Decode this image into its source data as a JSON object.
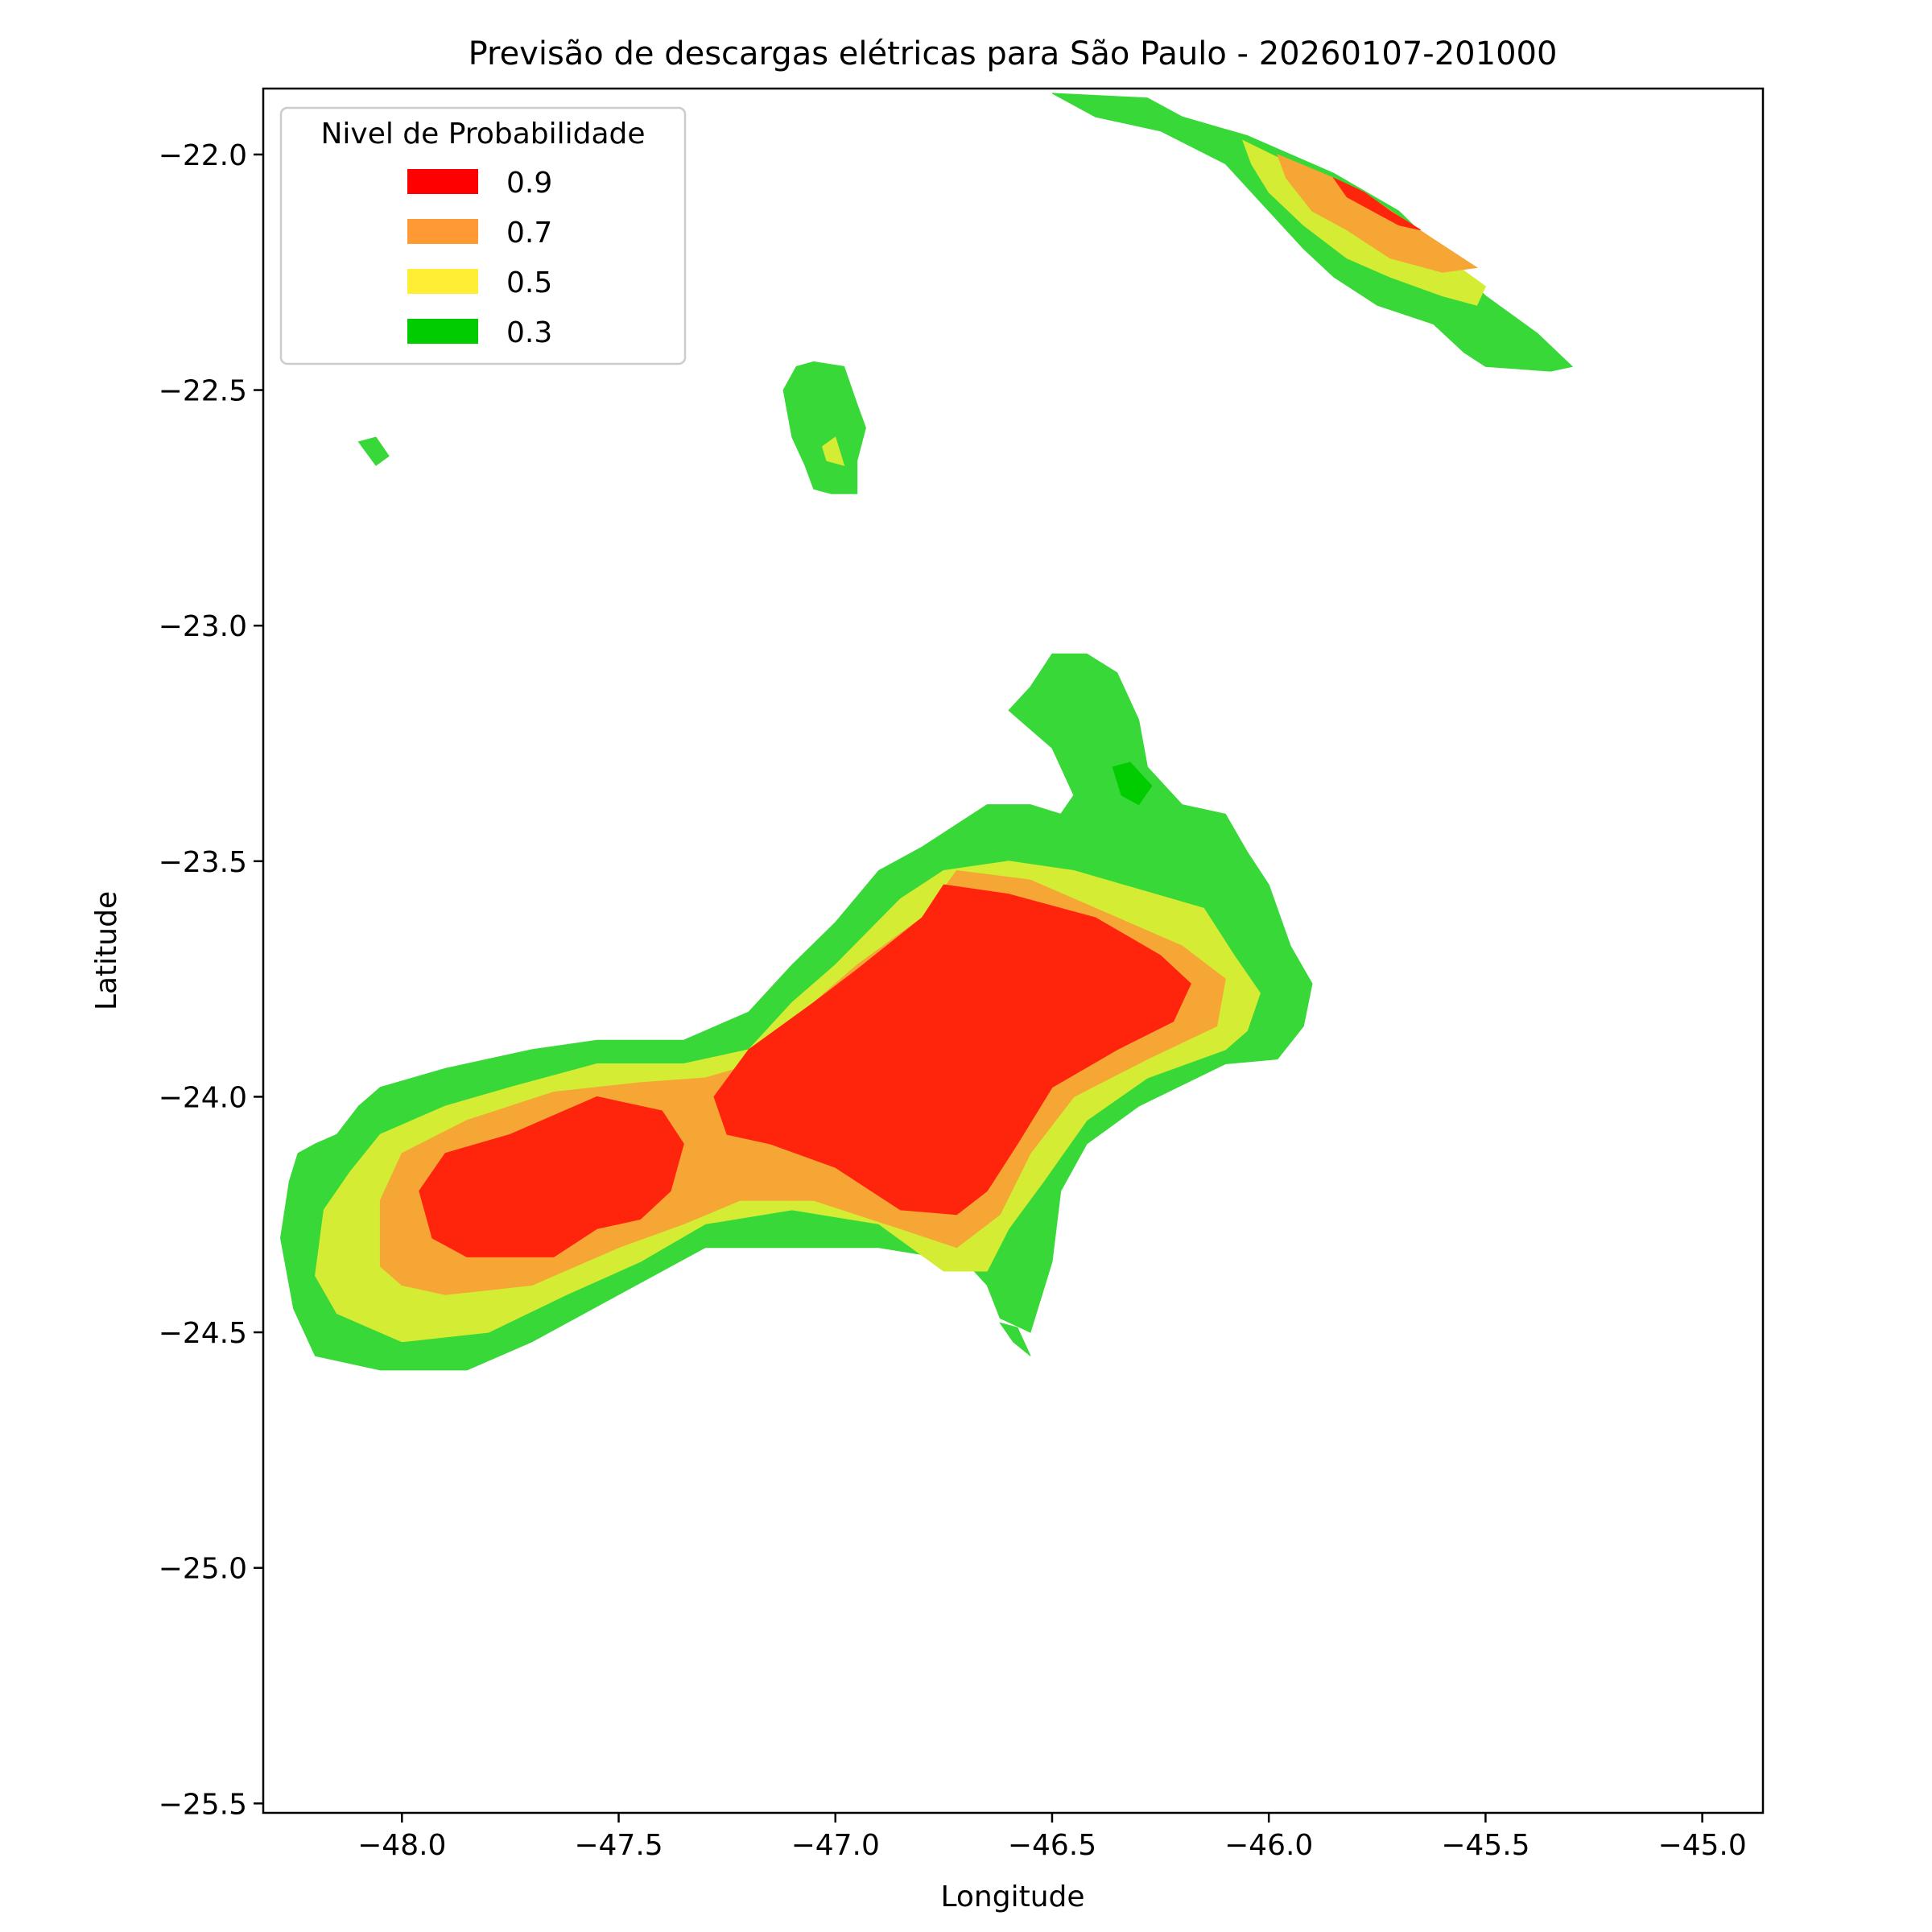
{
  "chart_data": {
    "type": "contourf",
    "title": "Previsão de descargas elétricas para São Paulo - 20260107-201000",
    "xlabel": "Longitude",
    "ylabel": "Latitude",
    "xlim": [
      -48.32,
      -44.86
    ],
    "ylim": [
      -25.52,
      -21.86
    ],
    "xticks": [
      -48.0,
      -47.5,
      -47.0,
      -46.5,
      -46.0,
      -45.5,
      -45.0
    ],
    "xtick_labels": [
      "−48.0",
      "−47.5",
      "−47.0",
      "−46.5",
      "−46.0",
      "−45.5",
      "−45.0"
    ],
    "yticks": [
      -22.0,
      -22.5,
      -23.0,
      -23.5,
      -24.0,
      -24.5,
      -25.0,
      -25.5
    ],
    "ytick_labels": [
      "−22.0",
      "−22.5",
      "−23.0",
      "−23.5",
      "−24.0",
      "−24.5",
      "−25.0",
      "−25.5"
    ],
    "grid": false,
    "legend": {
      "title": "Nivel de Probabilidade",
      "placement": "top-left",
      "entries": [
        {
          "label": "0.9",
          "color": "#ff0000"
        },
        {
          "label": "0.7",
          "color": "#ff9933"
        },
        {
          "label": "0.5",
          "color": "#ffee33"
        },
        {
          "label": "0.3",
          "color": "#00cc00"
        }
      ]
    },
    "levels": [
      {
        "level": 0.3,
        "color": "#38d838",
        "regions": [
          [
            [
              -48.26,
              -24.18
            ],
            [
              -48.24,
              -24.12
            ],
            [
              -48.2,
              -24.1
            ],
            [
              -48.15,
              -24.08
            ],
            [
              -48.1,
              -24.02
            ],
            [
              -48.05,
              -23.98
            ],
            [
              -47.9,
              -23.94
            ],
            [
              -47.7,
              -23.9
            ],
            [
              -47.55,
              -23.88
            ],
            [
              -47.35,
              -23.88
            ],
            [
              -47.2,
              -23.82
            ],
            [
              -47.1,
              -23.72
            ],
            [
              -47.0,
              -23.63
            ],
            [
              -46.9,
              -23.52
            ],
            [
              -46.8,
              -23.47
            ],
            [
              -46.65,
              -23.38
            ],
            [
              -46.55,
              -23.38
            ],
            [
              -46.48,
              -23.4
            ],
            [
              -46.45,
              -23.36
            ],
            [
              -46.5,
              -23.26
            ],
            [
              -46.6,
              -23.18
            ],
            [
              -46.55,
              -23.13
            ],
            [
              -46.5,
              -23.06
            ],
            [
              -46.42,
              -23.06
            ],
            [
              -46.35,
              -23.1
            ],
            [
              -46.3,
              -23.2
            ],
            [
              -46.28,
              -23.3
            ],
            [
              -46.2,
              -23.38
            ],
            [
              -46.1,
              -23.4
            ],
            [
              -46.05,
              -23.48
            ],
            [
              -46.0,
              -23.55
            ],
            [
              -45.95,
              -23.68
            ],
            [
              -45.9,
              -23.76
            ],
            [
              -45.92,
              -23.85
            ],
            [
              -45.98,
              -23.92
            ],
            [
              -46.1,
              -23.93
            ],
            [
              -46.3,
              -24.02
            ],
            [
              -46.42,
              -24.1
            ],
            [
              -46.48,
              -24.2
            ],
            [
              -46.5,
              -24.35
            ],
            [
              -46.55,
              -24.5
            ],
            [
              -46.62,
              -24.47
            ],
            [
              -46.65,
              -24.4
            ],
            [
              -46.7,
              -24.35
            ],
            [
              -46.9,
              -24.32
            ],
            [
              -47.1,
              -24.32
            ],
            [
              -47.3,
              -24.32
            ],
            [
              -47.5,
              -24.42
            ],
            [
              -47.7,
              -24.52
            ],
            [
              -47.85,
              -24.58
            ],
            [
              -48.05,
              -24.58
            ],
            [
              -48.2,
              -24.55
            ],
            [
              -48.25,
              -24.45
            ],
            [
              -48.28,
              -24.3
            ]
          ],
          [
            [
              -47.09,
              -22.45
            ],
            [
              -47.05,
              -22.44
            ],
            [
              -46.98,
              -22.45
            ],
            [
              -46.95,
              -22.53
            ],
            [
              -46.93,
              -22.58
            ],
            [
              -46.95,
              -22.65
            ],
            [
              -46.95,
              -22.72
            ],
            [
              -47.01,
              -22.72
            ],
            [
              -47.05,
              -22.71
            ],
            [
              -47.07,
              -22.66
            ],
            [
              -47.1,
              -22.6
            ],
            [
              -47.12,
              -22.5
            ]
          ],
          [
            [
              -46.5,
              -21.87
            ],
            [
              -46.28,
              -21.88
            ],
            [
              -46.2,
              -21.92
            ],
            [
              -46.05,
              -21.96
            ],
            [
              -45.85,
              -22.04
            ],
            [
              -45.7,
              -22.12
            ],
            [
              -45.5,
              -22.3
            ],
            [
              -45.38,
              -22.38
            ],
            [
              -45.3,
              -22.45
            ],
            [
              -45.35,
              -22.46
            ],
            [
              -45.5,
              -22.45
            ],
            [
              -45.55,
              -22.42
            ],
            [
              -45.62,
              -22.36
            ],
            [
              -45.75,
              -22.32
            ],
            [
              -45.85,
              -22.26
            ],
            [
              -45.92,
              -22.2
            ],
            [
              -46.0,
              -22.12
            ],
            [
              -46.1,
              -22.02
            ],
            [
              -46.25,
              -21.95
            ],
            [
              -46.4,
              -21.92
            ]
          ],
          [
            [
              -48.1,
              -22.61
            ],
            [
              -48.06,
              -22.6
            ],
            [
              -48.03,
              -22.64
            ],
            [
              -48.06,
              -22.66
            ]
          ],
          [
            [
              -46.62,
              -24.48
            ],
            [
              -46.58,
              -24.49
            ],
            [
              -46.55,
              -24.55
            ],
            [
              -46.59,
              -24.52
            ]
          ]
        ]
      },
      {
        "level": 0.5,
        "color": "#d4ed34",
        "regions": [
          [
            [
              -48.2,
              -24.38
            ],
            [
              -48.18,
              -24.24
            ],
            [
              -48.12,
              -24.16
            ],
            [
              -48.05,
              -24.08
            ],
            [
              -47.9,
              -24.02
            ],
            [
              -47.75,
              -23.98
            ],
            [
              -47.55,
              -23.93
            ],
            [
              -47.35,
              -23.93
            ],
            [
              -47.2,
              -23.9
            ],
            [
              -47.1,
              -23.8
            ],
            [
              -47.0,
              -23.72
            ],
            [
              -46.85,
              -23.58
            ],
            [
              -46.75,
              -23.52
            ],
            [
              -46.6,
              -23.5
            ],
            [
              -46.45,
              -23.52
            ],
            [
              -46.3,
              -23.56
            ],
            [
              -46.15,
              -23.6
            ],
            [
              -46.08,
              -23.7
            ],
            [
              -46.02,
              -23.78
            ],
            [
              -46.05,
              -23.86
            ],
            [
              -46.1,
              -23.9
            ],
            [
              -46.28,
              -23.96
            ],
            [
              -46.42,
              -24.05
            ],
            [
              -46.52,
              -24.18
            ],
            [
              -46.6,
              -24.28
            ],
            [
              -46.65,
              -24.37
            ],
            [
              -46.75,
              -24.37
            ],
            [
              -46.9,
              -24.27
            ],
            [
              -47.1,
              -24.24
            ],
            [
              -47.3,
              -24.27
            ],
            [
              -47.45,
              -24.35
            ],
            [
              -47.62,
              -24.42
            ],
            [
              -47.8,
              -24.5
            ],
            [
              -48.0,
              -24.52
            ],
            [
              -48.15,
              -24.46
            ]
          ],
          [
            [
              -47.03,
              -22.62
            ],
            [
              -47.0,
              -22.6
            ],
            [
              -46.98,
              -22.66
            ],
            [
              -47.02,
              -22.65
            ]
          ],
          [
            [
              -46.06,
              -21.97
            ],
            [
              -45.95,
              -22.02
            ],
            [
              -45.82,
              -22.1
            ],
            [
              -45.65,
              -22.18
            ],
            [
              -45.5,
              -22.28
            ],
            [
              -45.52,
              -22.32
            ],
            [
              -45.6,
              -22.3
            ],
            [
              -45.72,
              -22.26
            ],
            [
              -45.82,
              -22.22
            ],
            [
              -45.92,
              -22.15
            ],
            [
              -46.0,
              -22.08
            ],
            [
              -46.04,
              -22.02
            ]
          ]
        ]
      },
      {
        "level": 0.7,
        "color": "#f6a635",
        "regions": [
          [
            [
              -48.05,
              -24.36
            ],
            [
              -48.05,
              -24.22
            ],
            [
              -48.0,
              -24.12
            ],
            [
              -47.85,
              -24.05
            ],
            [
              -47.65,
              -23.99
            ],
            [
              -47.45,
              -23.97
            ],
            [
              -47.3,
              -23.96
            ],
            [
              -47.15,
              -23.92
            ],
            [
              -47.05,
              -23.8
            ],
            [
              -46.95,
              -23.72
            ],
            [
              -46.8,
              -23.62
            ],
            [
              -46.72,
              -23.52
            ],
            [
              -46.55,
              -23.54
            ],
            [
              -46.35,
              -23.62
            ],
            [
              -46.2,
              -23.68
            ],
            [
              -46.1,
              -23.75
            ],
            [
              -46.12,
              -23.85
            ],
            [
              -46.28,
              -23.92
            ],
            [
              -46.45,
              -24.0
            ],
            [
              -46.55,
              -24.12
            ],
            [
              -46.62,
              -24.25
            ],
            [
              -46.72,
              -24.32
            ],
            [
              -46.85,
              -24.28
            ],
            [
              -47.05,
              -24.22
            ],
            [
              -47.22,
              -24.22
            ],
            [
              -47.35,
              -24.27
            ],
            [
              -47.5,
              -24.32
            ],
            [
              -47.7,
              -24.4
            ],
            [
              -47.9,
              -24.42
            ],
            [
              -48.0,
              -24.4
            ]
          ],
          [
            [
              -45.98,
              -22.0
            ],
            [
              -45.85,
              -22.05
            ],
            [
              -45.75,
              -22.1
            ],
            [
              -45.62,
              -22.18
            ],
            [
              -45.52,
              -22.24
            ],
            [
              -45.6,
              -22.25
            ],
            [
              -45.72,
              -22.22
            ],
            [
              -45.82,
              -22.16
            ],
            [
              -45.9,
              -22.12
            ],
            [
              -45.96,
              -22.05
            ]
          ]
        ]
      },
      {
        "level": 0.9,
        "color": "#ff250d",
        "regions": [
          [
            [
              -47.96,
              -24.2
            ],
            [
              -47.93,
              -24.3
            ],
            [
              -47.85,
              -24.34
            ],
            [
              -47.65,
              -24.34
            ],
            [
              -47.55,
              -24.28
            ],
            [
              -47.45,
              -24.26
            ],
            [
              -47.38,
              -24.2
            ],
            [
              -47.35,
              -24.1
            ],
            [
              -47.4,
              -24.03
            ],
            [
              -47.55,
              -24.0
            ],
            [
              -47.75,
              -24.08
            ],
            [
              -47.9,
              -24.12
            ]
          ],
          [
            [
              -47.28,
              -24.0
            ],
            [
              -47.2,
              -23.9
            ],
            [
              -47.05,
              -23.8
            ],
            [
              -46.95,
              -23.73
            ],
            [
              -46.8,
              -23.62
            ],
            [
              -46.75,
              -23.55
            ],
            [
              -46.6,
              -23.57
            ],
            [
              -46.4,
              -23.62
            ],
            [
              -46.25,
              -23.7
            ],
            [
              -46.18,
              -23.76
            ],
            [
              -46.22,
              -23.84
            ],
            [
              -46.35,
              -23.9
            ],
            [
              -46.5,
              -23.98
            ],
            [
              -46.58,
              -24.1
            ],
            [
              -46.65,
              -24.2
            ],
            [
              -46.72,
              -24.25
            ],
            [
              -46.85,
              -24.24
            ],
            [
              -47.0,
              -24.15
            ],
            [
              -47.15,
              -24.1
            ],
            [
              -47.25,
              -24.08
            ]
          ],
          [
            [
              -45.85,
              -22.05
            ],
            [
              -45.78,
              -22.08
            ],
            [
              -45.72,
              -22.12
            ],
            [
              -45.65,
              -22.16
            ],
            [
              -45.7,
              -22.15
            ],
            [
              -45.76,
              -22.12
            ],
            [
              -45.82,
              -22.09
            ]
          ]
        ]
      },
      {
        "level": 0.3,
        "color": "#00cc00",
        "regions": [
          [
            [
              -46.36,
              -23.3
            ],
            [
              -46.32,
              -23.29
            ],
            [
              -46.27,
              -23.34
            ],
            [
              -46.3,
              -23.38
            ],
            [
              -46.34,
              -23.36
            ]
          ]
        ]
      }
    ]
  }
}
